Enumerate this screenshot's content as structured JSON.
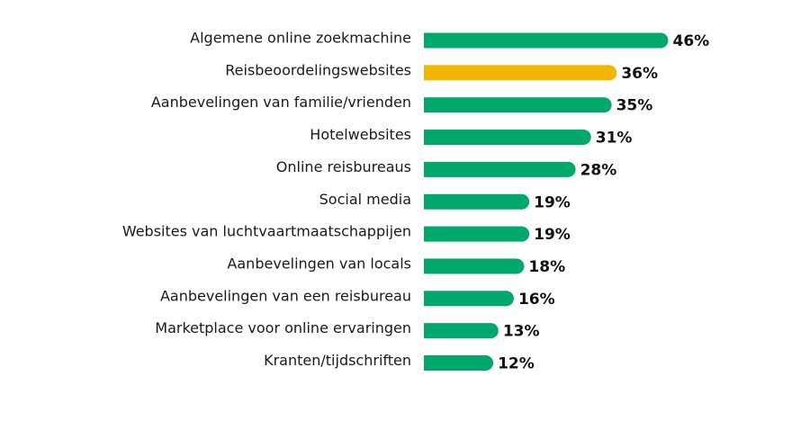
{
  "chart_data": {
    "type": "bar",
    "orientation": "horizontal",
    "categories": [
      "Algemene online zoekmachine",
      "Reisbeoordelingswebsites",
      "Aanbevelingen van familie/vrienden",
      "Hotelwebsites",
      "Online reisbureaus",
      "Social media",
      "Websites van luchtvaartmaatschappijen",
      "Aanbevelingen van locals",
      "Aanbevelingen van een reisbureau",
      "Marketplace voor online ervaringen",
      "Kranten/tijdschriften"
    ],
    "values": [
      46,
      36,
      35,
      31,
      28,
      19,
      19,
      18,
      16,
      13,
      12
    ],
    "value_labels": [
      "46%",
      "36%",
      "35%",
      "31%",
      "28%",
      "19%",
      "19%",
      "18%",
      "16%",
      "13%",
      "12%"
    ],
    "highlight_index": 1,
    "colors": {
      "default": "#00a86b",
      "highlight": "#f2b705"
    },
    "grid": false,
    "legend": "none"
  }
}
